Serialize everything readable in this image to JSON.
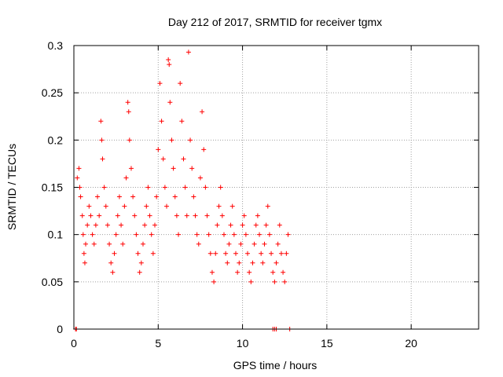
{
  "chart_data": {
    "type": "scatter",
    "title": "Day 212 of 2017, SRMTID for receiver tgmx",
    "xlabel": "GPS time / hours",
    "ylabel": "SRMTID / TECUs",
    "xlim": [
      0,
      24
    ],
    "ylim": [
      0,
      0.3
    ],
    "xticks": [
      0,
      5,
      10,
      15,
      20
    ],
    "xtick_labels": [
      "0",
      "5",
      "10",
      "15",
      "20"
    ],
    "yticks": [
      0,
      0.05,
      0.1,
      0.15,
      0.2,
      0.25,
      0.3
    ],
    "ytick_labels": [
      "0",
      "0.05",
      "0.1",
      "0.15",
      "0.2",
      "0.25",
      "0.3"
    ],
    "grid": true,
    "marker": "+",
    "color": "#ff0000",
    "series": [
      {
        "name": "SRMTID",
        "points": [
          [
            0.1,
            0.0
          ],
          [
            0.15,
            0.0
          ],
          [
            11.8,
            0.0
          ],
          [
            11.9,
            0.0
          ],
          [
            12.0,
            0.0
          ],
          [
            12.8,
            0.0
          ],
          [
            0.2,
            0.16
          ],
          [
            0.3,
            0.17
          ],
          [
            0.35,
            0.15
          ],
          [
            0.4,
            0.14
          ],
          [
            0.5,
            0.12
          ],
          [
            0.55,
            0.1
          ],
          [
            0.6,
            0.08
          ],
          [
            0.65,
            0.07
          ],
          [
            0.7,
            0.09
          ],
          [
            0.8,
            0.11
          ],
          [
            0.9,
            0.13
          ],
          [
            1.0,
            0.12
          ],
          [
            1.1,
            0.1
          ],
          [
            1.2,
            0.09
          ],
          [
            1.3,
            0.11
          ],
          [
            1.4,
            0.14
          ],
          [
            1.5,
            0.12
          ],
          [
            1.6,
            0.22
          ],
          [
            1.65,
            0.2
          ],
          [
            1.7,
            0.18
          ],
          [
            1.8,
            0.15
          ],
          [
            1.9,
            0.13
          ],
          [
            2.0,
            0.11
          ],
          [
            2.1,
            0.09
          ],
          [
            2.2,
            0.07
          ],
          [
            2.3,
            0.06
          ],
          [
            2.4,
            0.08
          ],
          [
            2.5,
            0.1
          ],
          [
            2.6,
            0.12
          ],
          [
            2.7,
            0.14
          ],
          [
            2.8,
            0.11
          ],
          [
            2.9,
            0.09
          ],
          [
            3.0,
            0.13
          ],
          [
            3.1,
            0.16
          ],
          [
            3.2,
            0.24
          ],
          [
            3.25,
            0.23
          ],
          [
            3.3,
            0.2
          ],
          [
            3.4,
            0.17
          ],
          [
            3.5,
            0.14
          ],
          [
            3.6,
            0.12
          ],
          [
            3.7,
            0.1
          ],
          [
            3.8,
            0.08
          ],
          [
            3.9,
            0.06
          ],
          [
            4.0,
            0.07
          ],
          [
            4.1,
            0.09
          ],
          [
            4.2,
            0.11
          ],
          [
            4.3,
            0.13
          ],
          [
            4.4,
            0.15
          ],
          [
            4.5,
            0.12
          ],
          [
            4.6,
            0.1
          ],
          [
            4.7,
            0.08
          ],
          [
            4.8,
            0.11
          ],
          [
            4.9,
            0.14
          ],
          [
            5.0,
            0.19
          ],
          [
            5.1,
            0.26
          ],
          [
            5.2,
            0.22
          ],
          [
            5.3,
            0.18
          ],
          [
            5.4,
            0.15
          ],
          [
            5.5,
            0.13
          ],
          [
            5.6,
            0.285
          ],
          [
            5.65,
            0.28
          ],
          [
            5.7,
            0.24
          ],
          [
            5.8,
            0.2
          ],
          [
            5.9,
            0.17
          ],
          [
            6.0,
            0.14
          ],
          [
            6.1,
            0.12
          ],
          [
            6.2,
            0.1
          ],
          [
            6.3,
            0.26
          ],
          [
            6.4,
            0.22
          ],
          [
            6.5,
            0.18
          ],
          [
            6.6,
            0.15
          ],
          [
            6.7,
            0.12
          ],
          [
            6.8,
            0.293
          ],
          [
            6.9,
            0.2
          ],
          [
            7.0,
            0.17
          ],
          [
            7.1,
            0.14
          ],
          [
            7.2,
            0.12
          ],
          [
            7.3,
            0.1
          ],
          [
            7.4,
            0.09
          ],
          [
            7.5,
            0.16
          ],
          [
            7.6,
            0.23
          ],
          [
            7.7,
            0.19
          ],
          [
            7.8,
            0.15
          ],
          [
            7.9,
            0.12
          ],
          [
            8.0,
            0.1
          ],
          [
            8.1,
            0.08
          ],
          [
            8.2,
            0.06
          ],
          [
            8.3,
            0.05
          ],
          [
            8.4,
            0.08
          ],
          [
            8.5,
            0.11
          ],
          [
            8.6,
            0.13
          ],
          [
            8.7,
            0.15
          ],
          [
            8.8,
            0.12
          ],
          [
            8.9,
            0.1
          ],
          [
            9.0,
            0.08
          ],
          [
            9.1,
            0.07
          ],
          [
            9.2,
            0.09
          ],
          [
            9.3,
            0.11
          ],
          [
            9.4,
            0.13
          ],
          [
            9.5,
            0.1
          ],
          [
            9.6,
            0.08
          ],
          [
            9.7,
            0.06
          ],
          [
            9.8,
            0.07
          ],
          [
            9.9,
            0.09
          ],
          [
            10.0,
            0.11
          ],
          [
            10.1,
            0.12
          ],
          [
            10.2,
            0.1
          ],
          [
            10.3,
            0.08
          ],
          [
            10.4,
            0.06
          ],
          [
            10.5,
            0.05
          ],
          [
            10.6,
            0.07
          ],
          [
            10.7,
            0.09
          ],
          [
            10.8,
            0.11
          ],
          [
            10.9,
            0.12
          ],
          [
            11.0,
            0.1
          ],
          [
            11.1,
            0.08
          ],
          [
            11.2,
            0.07
          ],
          [
            11.3,
            0.09
          ],
          [
            11.4,
            0.11
          ],
          [
            11.5,
            0.13
          ],
          [
            11.6,
            0.1
          ],
          [
            11.7,
            0.08
          ],
          [
            11.8,
            0.06
          ],
          [
            11.9,
            0.05
          ],
          [
            12.0,
            0.07
          ],
          [
            12.1,
            0.09
          ],
          [
            12.2,
            0.11
          ],
          [
            12.3,
            0.08
          ],
          [
            12.4,
            0.06
          ],
          [
            12.5,
            0.05
          ],
          [
            12.6,
            0.08
          ],
          [
            12.7,
            0.1
          ]
        ]
      }
    ]
  }
}
